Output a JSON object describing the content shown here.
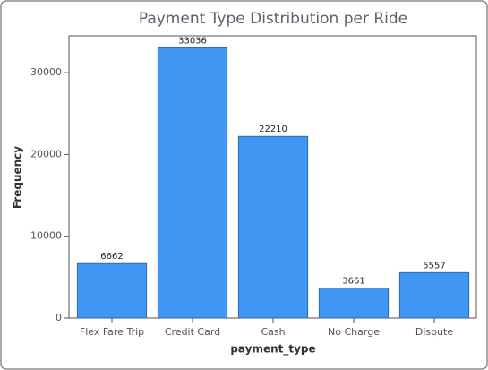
{
  "chart_data": {
    "type": "bar",
    "title": "Payment Type Distribution per Ride",
    "x_label": "payment_type",
    "y_label": "Frequency",
    "categories": [
      "Flex Fare Trip",
      "Credit Card",
      "Cash",
      "No Charge",
      "Dispute"
    ],
    "values": [
      6662,
      33036,
      22210,
      3661,
      5557
    ],
    "color": "#4096f3",
    "ylim": [
      0,
      34500
    ],
    "yticks": [
      0,
      10000,
      20000,
      30000
    ]
  }
}
